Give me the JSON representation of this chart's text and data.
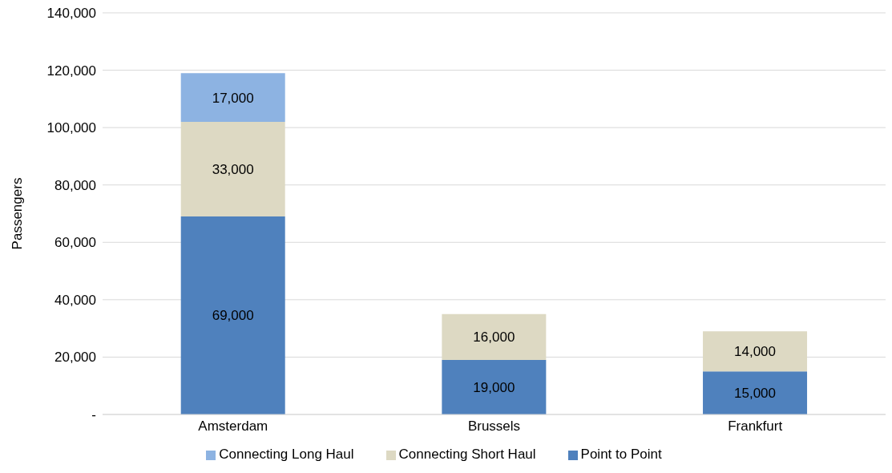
{
  "chart_data": {
    "type": "bar",
    "stacked": true,
    "ylabel": "Passengers",
    "categories": [
      "Amsterdam",
      "Brussels",
      "Frankfurt"
    ],
    "series": [
      {
        "name": "Point to Point",
        "color": "#4f81bd",
        "values": [
          69000,
          19000,
          15000
        ],
        "value_labels": [
          "69,000",
          "19,000",
          "15,000"
        ]
      },
      {
        "name": "Connecting Short Haul",
        "color": "#ddd9c3",
        "values": [
          33000,
          16000,
          14000
        ],
        "value_labels": [
          "33,000",
          "16,000",
          "14,000"
        ]
      },
      {
        "name": "Connecting Long Haul",
        "color": "#8db3e2",
        "values": [
          17000,
          null,
          null
        ],
        "value_labels": [
          "17,000",
          null,
          null
        ]
      }
    ],
    "ylim": [
      0,
      140000
    ],
    "yticks": [
      {
        "value": 0,
        "label": "-"
      },
      {
        "value": 20000,
        "label": "20,000"
      },
      {
        "value": 40000,
        "label": "40,000"
      },
      {
        "value": 60000,
        "label": "60,000"
      },
      {
        "value": 80000,
        "label": "80,000"
      },
      {
        "value": 100000,
        "label": "100,000"
      },
      {
        "value": 120000,
        "label": "120,000"
      },
      {
        "value": 140000,
        "label": "140,000"
      }
    ],
    "grid": "y",
    "legend": "bottom"
  }
}
